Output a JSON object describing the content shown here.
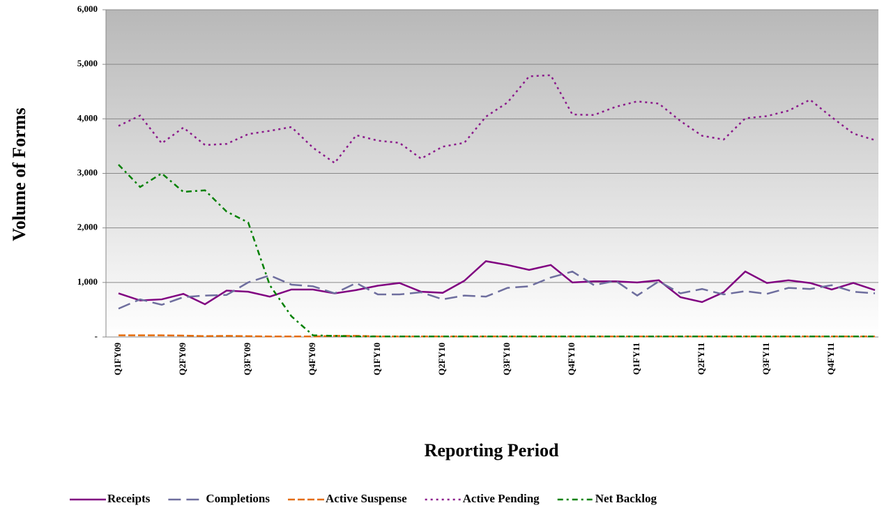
{
  "chart_data": {
    "type": "line",
    "y_label": "Volume of Forms",
    "x_label": "Reporting Period",
    "categories": [
      "Q1FY09",
      null,
      null,
      "Q2FY09",
      null,
      null,
      "Q3FY09",
      null,
      null,
      "Q4FY09",
      null,
      null,
      "Q1FY10",
      null,
      null,
      "Q2FY10",
      null,
      null,
      "Q3FY10",
      null,
      null,
      "Q4FY10",
      null,
      null,
      "Q1FY11",
      null,
      null,
      "Q2FY11",
      null,
      null,
      "Q3FY11",
      null,
      null,
      "Q4FY11",
      null,
      null
    ],
    "ylim": [
      0,
      6000
    ],
    "yticks": [
      {
        "value": 0,
        "label": "-"
      },
      {
        "value": 1000,
        "label": "1,000"
      },
      {
        "value": 2000,
        "label": "2,000"
      },
      {
        "value": 3000,
        "label": "3,000"
      },
      {
        "value": 4000,
        "label": "4,000"
      },
      {
        "value": 5000,
        "label": "5,000"
      },
      {
        "value": 6000,
        "label": "6,000"
      }
    ],
    "grid": true,
    "legend": "bottom",
    "series": [
      {
        "name": "Receipts",
        "color": "#800080",
        "dash": "solid",
        "values": [
          800,
          670,
          690,
          790,
          600,
          850,
          830,
          740,
          870,
          870,
          800,
          860,
          940,
          990,
          830,
          810,
          1030,
          1390,
          1320,
          1230,
          1320,
          1000,
          1020,
          1020,
          1000,
          1040,
          730,
          640,
          820,
          1200,
          990,
          1040,
          990,
          870,
          990,
          860
        ]
      },
      {
        "name": "Completions",
        "color": "#6E6E9E",
        "dash": "long-dash",
        "values": [
          520,
          690,
          590,
          730,
          760,
          770,
          1000,
          1130,
          960,
          930,
          800,
          990,
          780,
          780,
          820,
          690,
          760,
          740,
          900,
          930,
          1090,
          1200,
          950,
          1030,
          760,
          1020,
          800,
          880,
          780,
          840,
          790,
          900,
          880,
          950,
          830,
          800
        ]
      },
      {
        "name": "Active Suspense",
        "color": "#E46C0A",
        "dash": "dash",
        "values": [
          30,
          30,
          30,
          25,
          15,
          20,
          15,
          10,
          10,
          10,
          20,
          20,
          10,
          10,
          10,
          10,
          10,
          10,
          10,
          10,
          10,
          10,
          10,
          10,
          10,
          10,
          10,
          10,
          10,
          10,
          10,
          10,
          10,
          10,
          10,
          10
        ]
      },
      {
        "name": "Active Pending",
        "color": "#8B1A8B",
        "dash": "dot",
        "values": [
          3870,
          4060,
          3550,
          3840,
          3520,
          3540,
          3720,
          3780,
          3850,
          3470,
          3190,
          3700,
          3600,
          3560,
          3270,
          3490,
          3560,
          4040,
          4300,
          4780,
          4800,
          4080,
          4070,
          4220,
          4320,
          4280,
          3960,
          3690,
          3620,
          4010,
          4050,
          4150,
          4350,
          4030,
          3730,
          3610
        ]
      },
      {
        "name": "Net Backlog",
        "color": "#008000",
        "dash": "dash-dot",
        "values": [
          3160,
          2750,
          3000,
          2660,
          2690,
          2300,
          2100,
          950,
          380,
          30,
          20,
          10,
          10,
          10,
          10,
          10,
          10,
          10,
          10,
          10,
          10,
          10,
          10,
          10,
          10,
          10,
          10,
          10,
          10,
          10,
          10,
          10,
          10,
          10,
          10,
          10
        ]
      }
    ]
  }
}
